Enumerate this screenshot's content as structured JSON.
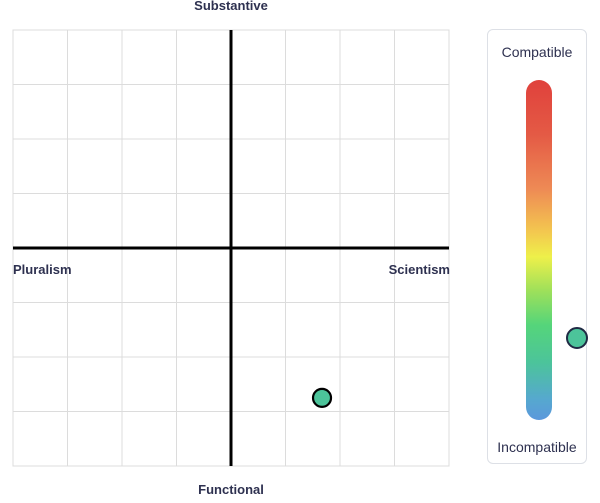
{
  "axes": {
    "top": "Substantive",
    "bottom": "Functional",
    "left": "Pluralism",
    "right": "Scientism"
  },
  "chart_data": {
    "type": "scatter",
    "xlim": [
      -4,
      4
    ],
    "ylim": [
      -4,
      4
    ],
    "grid": true,
    "grid_divisions": 8,
    "points": [
      {
        "x": 1.67,
        "y": -2.75,
        "color": "#4cc49a"
      }
    ]
  },
  "meter": {
    "top_label": "Compatible",
    "bottom_label": "Incompatible",
    "level": 0.24,
    "knob_color": "#4cc49a"
  }
}
